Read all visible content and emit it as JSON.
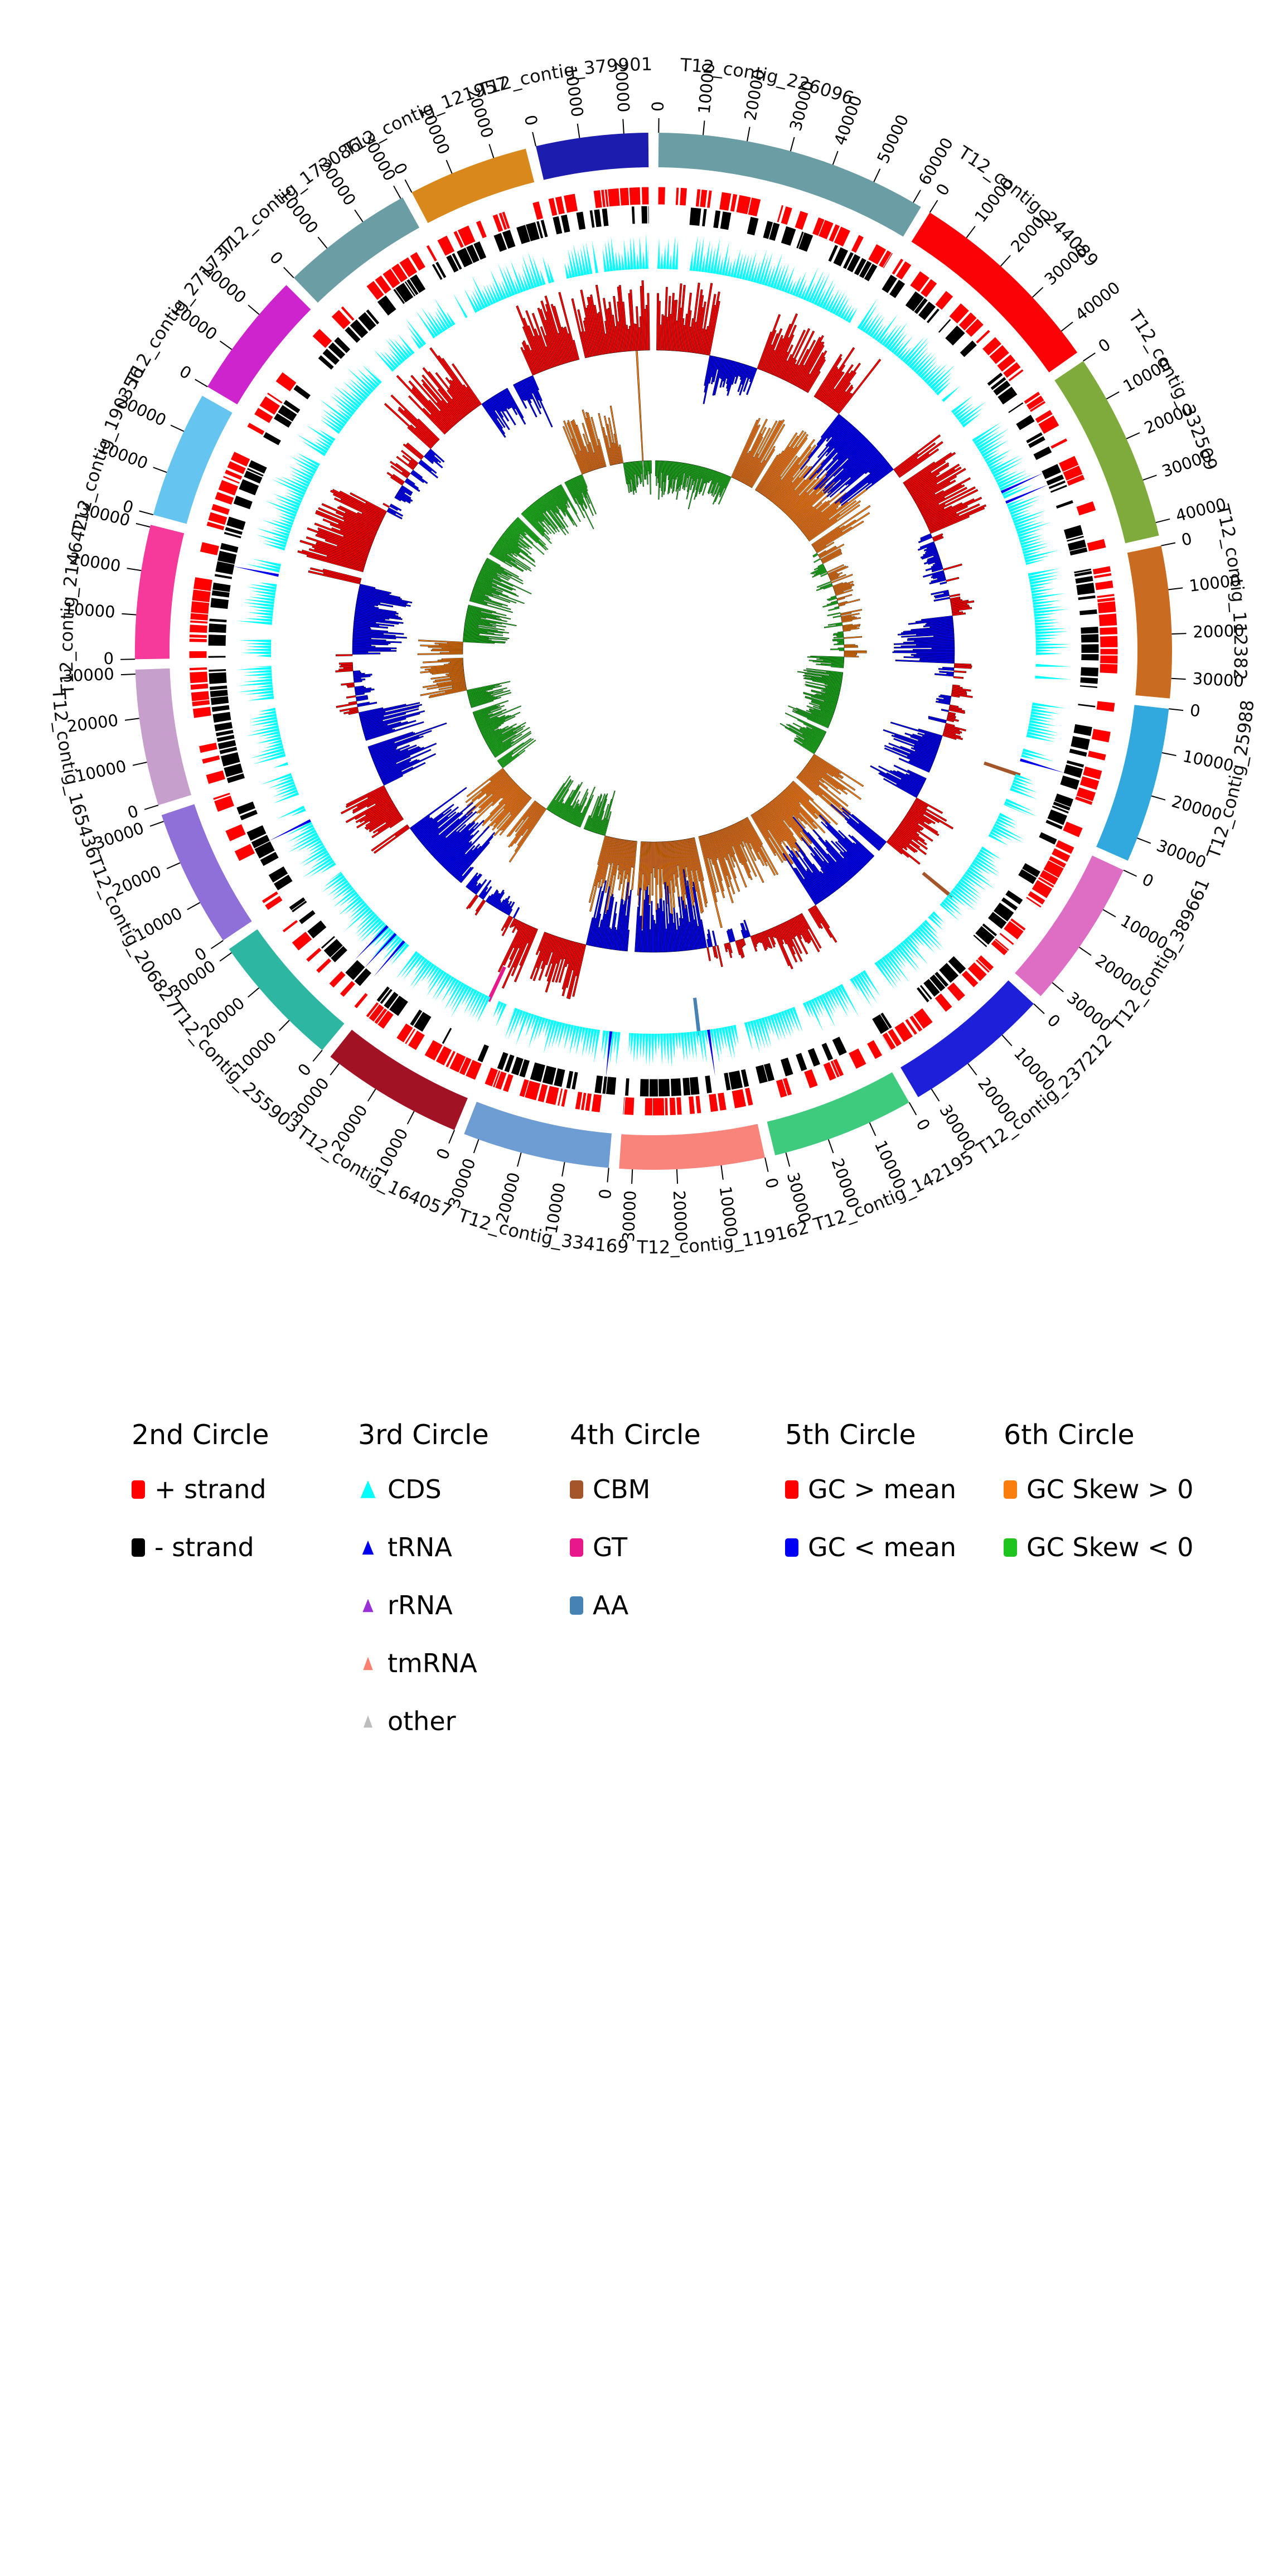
{
  "chart_data": {
    "type": "circular-genome-plot",
    "title": "",
    "description": "Circos-style multi-ring genome assembly plot of 20 contigs (prefix T12_contig_) with strand features, gene triangles, CAZyme marks, GC content and GC skew histograms",
    "tick_interval_bp": 10000,
    "rings_outer_to_inner": [
      {
        "circle": "1st",
        "content": "contig ideogram arcs with coordinate ticks every 10000 bp and contig name labels"
      },
      {
        "circle": "2nd",
        "content": "+ strand feature blocks (red, outer row) and - strand feature blocks (black, inner row)"
      },
      {
        "circle": "3rd",
        "content": "gene feature triangles: CDS cyan, tRNA blue, rRNA purple, tmRNA salmon, other gray"
      },
      {
        "circle": "4th",
        "content": "sparse CAZyme marks: CBM brown, GT pink, AA steel blue"
      },
      {
        "circle": "5th",
        "content": "GC content histogram: red bars outward = GC > mean, blue bars inward = GC < mean"
      },
      {
        "circle": "6th",
        "content": "GC skew histogram: orange bars outward = GC Skew > 0, green bars inward = GC Skew < 0"
      }
    ],
    "contigs": [
      {
        "name": "T12_contig_226096",
        "length": 62000,
        "color": "#6B9EA4"
      },
      {
        "name": "T12_contig_244089",
        "length": 46000,
        "color": "#FB0207"
      },
      {
        "name": "T12_contig_332509",
        "length": 43000,
        "color": "#7FAA3C"
      },
      {
        "name": "T12_contig_112382",
        "length": 34500,
        "color": "#C96B21"
      },
      {
        "name": "T12_contig_25988",
        "length": 35500,
        "color": "#31A8DE"
      },
      {
        "name": "T12_contig_389661",
        "length": 34000,
        "color": "#DD6EC4"
      },
      {
        "name": "T12_contig_237212",
        "length": 33500,
        "color": "#1D1FD9"
      },
      {
        "name": "T12_contig_142195",
        "length": 32500,
        "color": "#3ECB7D"
      },
      {
        "name": "T12_contig_119162",
        "length": 33000,
        "color": "#F9847B"
      },
      {
        "name": "T12_contig_334169",
        "length": 33500,
        "color": "#6D9DD3"
      },
      {
        "name": "T12_contig_164057",
        "length": 32500,
        "color": "#A01224"
      },
      {
        "name": "T12_contig_255903",
        "length": 31000,
        "color": "#2DB7A3"
      },
      {
        "name": "T12_contig_206827",
        "length": 31500,
        "color": "#8F70D8"
      },
      {
        "name": "T12_contig_165436",
        "length": 31000,
        "color": "#C79FCC"
      },
      {
        "name": "T12_contig_214642",
        "length": 30500,
        "color": "#F53A9C"
      },
      {
        "name": "T12_contig_190356",
        "length": 29000,
        "color": "#66C4F0"
      },
      {
        "name": "T12_contig_271737",
        "length": 29000,
        "color": "#CE24CE"
      },
      {
        "name": "T12_contig_173086",
        "length": 30500,
        "color": "#6B9EA4"
      },
      {
        "name": "T12_contig_121957",
        "length": 27500,
        "color": "#D9891B"
      },
      {
        "name": "T12_contig_379901",
        "length": 25500,
        "color": "#1C1CAE"
      }
    ],
    "colors": {
      "pos_strand": "#FF0000",
      "neg_strand": "#000000",
      "cds": "#00FFFF",
      "trna": "#0000EE",
      "rrna": "#9A31D6",
      "tmrna": "#FA8072",
      "other": "#BDBDBD",
      "cbm": "#A5552A",
      "gt": "#E8188C",
      "aa": "#4682B4",
      "gc_high": "#FF0000",
      "gc_low": "#0000F5",
      "skew_pos": "#F97E0E",
      "skew_neg": "#1FC41F"
    },
    "fourth_circle_marks": [
      {
        "type": "CBM",
        "contig": "T12_contig_25988",
        "frac": 0.69
      },
      {
        "type": "CBM",
        "contig": "T12_contig_389661",
        "frac": 0.85
      },
      {
        "type": "AA",
        "contig": "T12_contig_119162",
        "frac": 0.33
      },
      {
        "type": "GT",
        "contig": "T12_contig_164057",
        "frac": 0.15
      }
    ],
    "trna_positions_frac_of_genome": [
      0.185,
      0.19,
      0.3,
      0.48,
      0.52,
      0.615,
      0.62,
      0.625,
      0.68,
      0.785
    ],
    "gc_runs": [
      [
        0.0,
        0.03,
        1,
        0.95
      ],
      [
        0.03,
        0.058,
        -1,
        0.55
      ],
      [
        0.058,
        0.108,
        1,
        0.75
      ],
      [
        0.108,
        0.152,
        -1,
        1.0
      ],
      [
        0.152,
        0.19,
        1,
        0.8
      ],
      [
        0.19,
        0.235,
        0,
        0.45
      ],
      [
        0.235,
        0.262,
        -1,
        0.85
      ],
      [
        0.262,
        0.3,
        0,
        0.5
      ],
      [
        0.3,
        0.335,
        -1,
        0.8
      ],
      [
        0.335,
        0.365,
        1,
        0.6
      ],
      [
        0.365,
        0.415,
        -1,
        0.95
      ],
      [
        0.415,
        0.44,
        1,
        0.6
      ],
      [
        0.44,
        0.475,
        0,
        0.45
      ],
      [
        0.475,
        0.54,
        -1,
        0.95
      ],
      [
        0.54,
        0.575,
        1,
        0.75
      ],
      [
        0.575,
        0.615,
        0,
        0.5
      ],
      [
        0.615,
        0.655,
        -1,
        0.9
      ],
      [
        0.655,
        0.68,
        1,
        0.65
      ],
      [
        0.68,
        0.72,
        -1,
        0.9
      ],
      [
        0.72,
        0.75,
        0,
        0.5
      ],
      [
        0.75,
        0.79,
        -1,
        0.75
      ],
      [
        0.79,
        0.83,
        1,
        0.9
      ],
      [
        0.83,
        0.87,
        0,
        0.55
      ],
      [
        0.87,
        0.905,
        1,
        0.85
      ],
      [
        0.905,
        0.935,
        -1,
        0.6
      ],
      [
        0.935,
        1.0,
        1,
        0.9
      ]
    ],
    "skew_runs": [
      [
        0.0,
        0.07,
        -1,
        0.6
      ],
      [
        0.07,
        0.165,
        1,
        0.95
      ],
      [
        0.165,
        0.26,
        0,
        0.5
      ],
      [
        0.26,
        0.345,
        -1,
        0.7
      ],
      [
        0.345,
        0.455,
        1,
        0.8
      ],
      [
        0.455,
        0.545,
        1,
        0.95
      ],
      [
        0.545,
        0.6,
        -1,
        0.75
      ],
      [
        0.6,
        0.65,
        1,
        0.7
      ],
      [
        0.65,
        0.72,
        -1,
        0.8
      ],
      [
        0.72,
        0.76,
        1,
        0.55
      ],
      [
        0.76,
        0.94,
        -1,
        0.8
      ],
      [
        0.94,
        0.975,
        1,
        0.7
      ],
      [
        0.975,
        1.0,
        -1,
        0.6
      ]
    ],
    "skew_spike_frac": 0.992,
    "seeds": {
      "strand": 11,
      "cds": 5,
      "gc": 17,
      "skew": 23
    }
  },
  "legend": {
    "columns": [
      {
        "header": "2nd Circle",
        "marker": "square",
        "items": [
          {
            "label": "+ strand",
            "color": "#FF0000"
          },
          {
            "label": "- strand",
            "color": "#000000"
          }
        ]
      },
      {
        "header": "3rd Circle",
        "marker": "triangle",
        "items": [
          {
            "label": "CDS",
            "color": "#00FFFF"
          },
          {
            "label": "tRNA",
            "color": "#0000EE"
          },
          {
            "label": "rRNA",
            "color": "#9A31D6"
          },
          {
            "label": "tmRNA",
            "color": "#FA8072"
          },
          {
            "label": "other",
            "color": "#BDBDBD"
          }
        ]
      },
      {
        "header": "4th Circle",
        "marker": "square",
        "items": [
          {
            "label": "CBM",
            "color": "#A5552A"
          },
          {
            "label": "GT",
            "color": "#E8188C"
          },
          {
            "label": "AA",
            "color": "#4682B4"
          }
        ]
      },
      {
        "header": "5th Circle",
        "marker": "square",
        "items": [
          {
            "label": "GC > mean",
            "color": "#FF0000"
          },
          {
            "label": "GC < mean",
            "color": "#0000F5"
          }
        ]
      },
      {
        "header": "6th Circle",
        "marker": "square",
        "items": [
          {
            "label": "GC Skew > 0",
            "color": "#F97E0E"
          },
          {
            "label": "GC Skew < 0",
            "color": "#1FC41F"
          }
        ]
      }
    ]
  }
}
